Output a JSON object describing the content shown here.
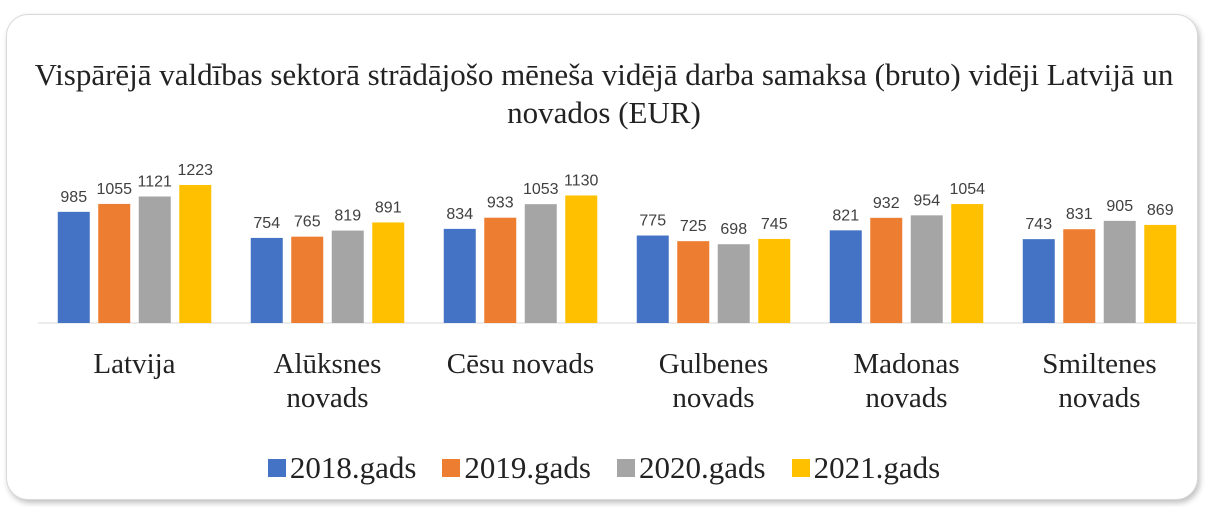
{
  "chart_data": {
    "type": "bar",
    "title": "Vispārējā valdības sektorā strādājošo mēneša vidējā darba samaksa (bruto) vidēji Latvijā un novados (EUR)",
    "categories": [
      "Latvija",
      "Alūksnes novads",
      "Cēsu novads",
      "Gulbenes novads",
      "Madonas novads",
      "Smiltenes novads"
    ],
    "series": [
      {
        "name": "2018.gads",
        "color": "#4472c4",
        "values": [
          985,
          754,
          834,
          775,
          821,
          743
        ]
      },
      {
        "name": "2019.gads",
        "color": "#ed7d31",
        "values": [
          1055,
          765,
          933,
          725,
          932,
          831
        ]
      },
      {
        "name": "2020.gads",
        "color": "#a5a5a5",
        "values": [
          1121,
          819,
          1053,
          698,
          954,
          905
        ]
      },
      {
        "name": "2021.gads",
        "color": "#ffc000",
        "values": [
          1223,
          891,
          1130,
          745,
          1054,
          869
        ]
      }
    ],
    "ylim": [
      0,
      1400
    ],
    "legend": "bottom"
  }
}
